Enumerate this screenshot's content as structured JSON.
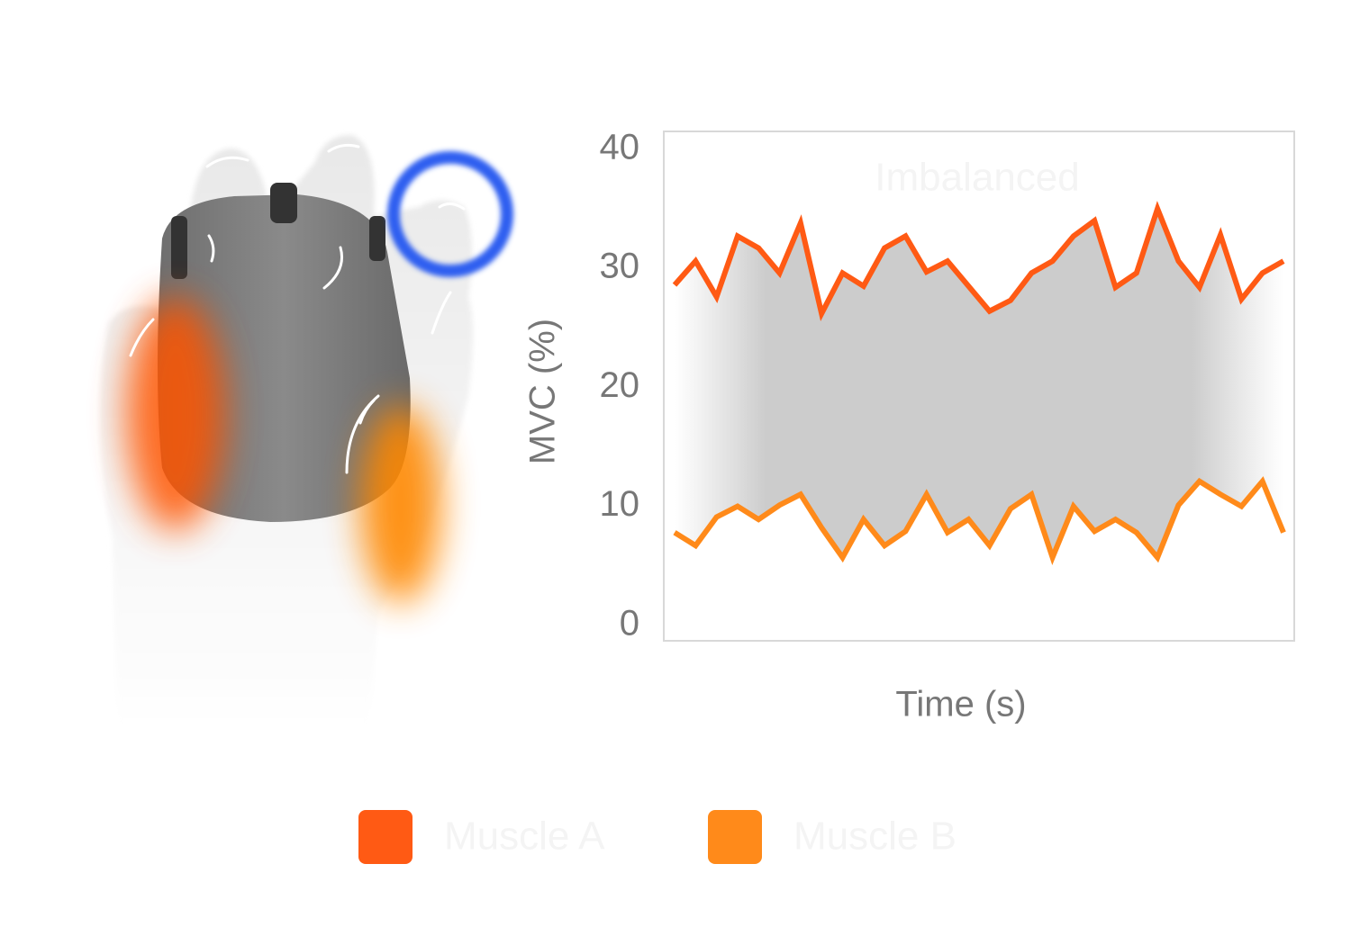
{
  "chart_data": {
    "type": "line",
    "title": "Imbalanced",
    "x_label": "Time (s)",
    "y_label": "MVC (%)",
    "ylim": [
      -1.3,
      41.5
    ],
    "yticks": [
      0,
      10,
      20,
      30,
      40
    ],
    "series": [
      {
        "name": "Muscle A",
        "color": "#ff5a14",
        "values": [
          28.6,
          30.6,
          27.6,
          32.7,
          31.7,
          29.6,
          33.8,
          26.2,
          29.6,
          28.5,
          31.7,
          32.7,
          29.7,
          30.6,
          28.5,
          26.4,
          27.3,
          29.6,
          30.6,
          32.7,
          34.0,
          28.4,
          29.6,
          35.0,
          30.6,
          28.4,
          32.8,
          27.4,
          29.6,
          30.6
        ]
      },
      {
        "name": "Muscle B",
        "color": "#ff8a1a",
        "values": [
          7.8,
          6.7,
          9.1,
          10.0,
          8.9,
          10.1,
          11.0,
          8.2,
          5.7,
          8.9,
          6.7,
          7.9,
          11.0,
          7.8,
          8.9,
          6.7,
          9.8,
          11.0,
          5.7,
          10.0,
          7.9,
          8.9,
          7.8,
          5.7,
          10.1,
          12.1,
          11.0,
          10.0,
          12.1,
          7.8
        ]
      }
    ]
  }
}
